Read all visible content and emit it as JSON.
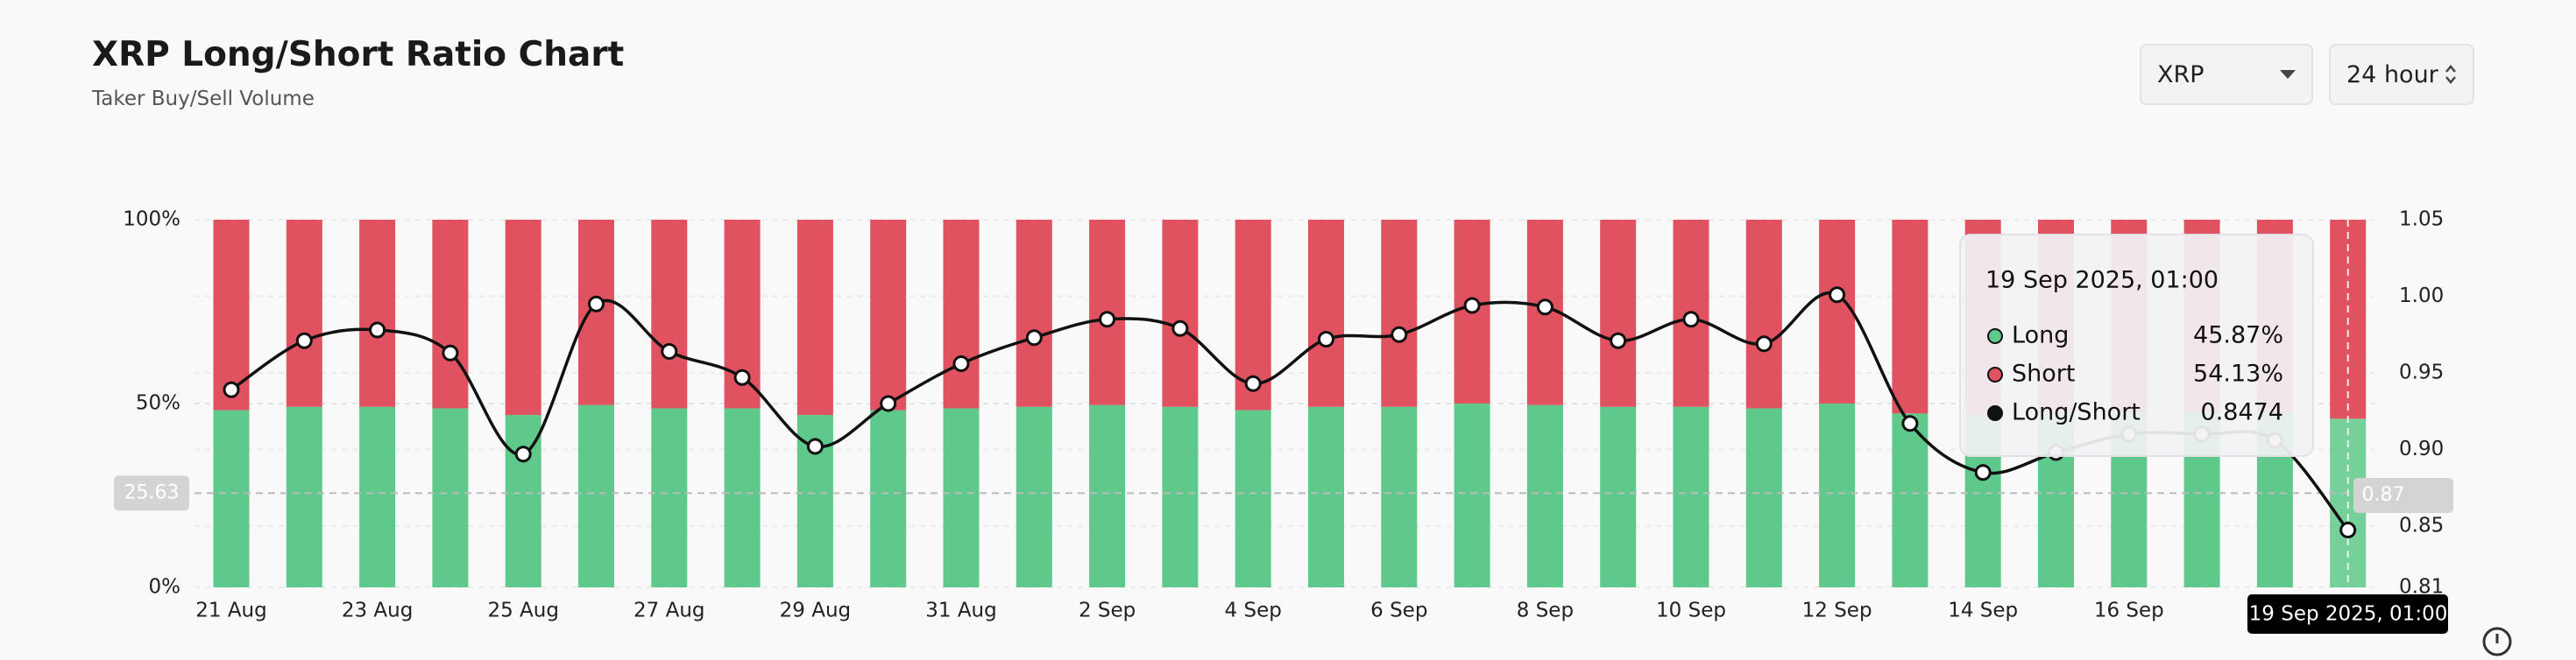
{
  "header": {
    "title": "XRP Long/Short Ratio Chart",
    "subtitle": "Taker Buy/Sell Volume"
  },
  "controls": {
    "symbol": "XRP",
    "interval": "24 hour"
  },
  "chart_data": {
    "type": "stacked-bar-line",
    "categories": [
      "21 Aug",
      null,
      "23 Aug",
      null,
      "25 Aug",
      null,
      "27 Aug",
      null,
      "29 Aug",
      null,
      "31 Aug",
      null,
      "2 Sep",
      null,
      "4 Sep",
      null,
      "6 Sep",
      null,
      "8 Sep",
      null,
      "10 Sep",
      null,
      "12 Sep",
      null,
      "14 Sep",
      null,
      "16 Sep",
      null,
      null,
      null
    ],
    "series": [
      {
        "name": "Long",
        "color": "#5ec98a",
        "values": [
          48.2,
          49.1,
          49.1,
          48.7,
          46.9,
          49.6,
          48.7,
          48.7,
          46.9,
          48.2,
          48.7,
          49.1,
          49.6,
          49.1,
          48.2,
          49.1,
          49.1,
          50.0,
          49.6,
          49.1,
          49.1,
          48.7,
          50.0,
          47.3,
          47.0,
          47.3,
          47.6,
          47.6,
          47.5,
          45.87
        ]
      },
      {
        "name": "Short",
        "color": "#e05260",
        "values": [
          51.8,
          50.9,
          50.9,
          51.3,
          53.1,
          50.4,
          51.3,
          51.3,
          53.1,
          51.8,
          51.3,
          50.9,
          50.4,
          50.9,
          51.8,
          50.9,
          50.9,
          50.0,
          50.4,
          50.9,
          50.9,
          51.3,
          50.0,
          52.7,
          53.0,
          52.7,
          52.4,
          52.4,
          52.5,
          54.13
        ]
      },
      {
        "name": "Long/Short",
        "color": "#111111",
        "axis": "y2",
        "values": [
          0.939,
          0.971,
          0.978,
          0.963,
          0.897,
          0.995,
          0.964,
          0.947,
          0.902,
          0.93,
          0.956,
          0.973,
          0.985,
          0.979,
          0.943,
          0.972,
          0.975,
          0.994,
          0.993,
          0.971,
          0.985,
          0.969,
          1.001,
          0.917,
          0.885,
          0.898,
          0.91,
          0.91,
          0.906,
          0.8474
        ]
      }
    ],
    "ylim": [
      0,
      100
    ],
    "yticks": [
      {
        "value": 0,
        "label": "0%"
      },
      {
        "value": 50,
        "label": "50%"
      },
      {
        "value": 100,
        "label": "100%"
      }
    ],
    "y2lim": [
      0.81,
      1.05
    ],
    "y2ticks": [
      0.81,
      0.85,
      {
        "value": 0.9,
        "label": "0.90"
      },
      0.95,
      {
        "value": 1,
        "label": "1.00"
      },
      1.05
    ],
    "grid": true,
    "crosshair": {
      "y": 25.63,
      "y2": 0.87,
      "x_label": "19 Sep 2025, 01:00"
    },
    "tooltip": {
      "title": "19 Sep 2025, 01:00",
      "values": [
        "45.87%",
        "54.13%",
        "0.8474"
      ]
    }
  }
}
